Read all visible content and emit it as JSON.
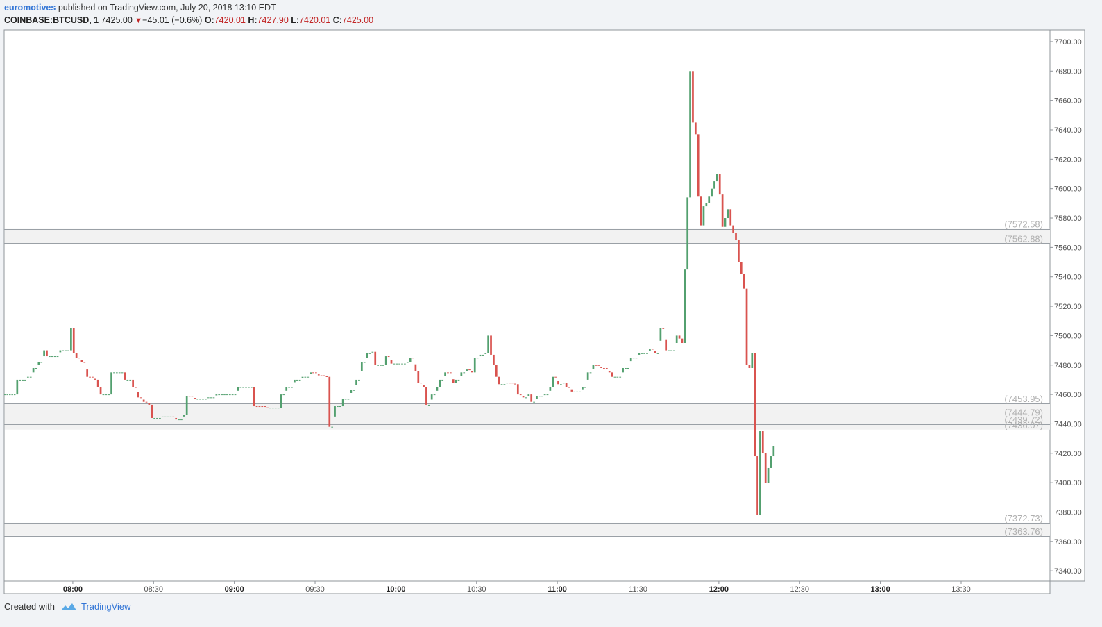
{
  "header": {
    "author": "euromotives",
    "published_text": "published on TradingView.com, July 20, 2018 13:10 EDT",
    "symbol": "COINBASE:BTCUSD, 1",
    "last_price": "7425.00",
    "change_arrow": "▼",
    "change": "−45.01 (−0.6%)",
    "open_label": "O:",
    "open": "7420.01",
    "high_label": "H:",
    "high": "7427.90",
    "low_label": "L:",
    "low": "7420.01",
    "close_label": "C:",
    "close": "7425.00"
  },
  "footer": {
    "created_with": "Created with",
    "brand": "TradingView"
  },
  "colors": {
    "up": "#53a06f",
    "down": "#d9534f",
    "grid_line": "#9aa0a6",
    "zone_fill": "#f2f2f2",
    "axis_text": "#555555",
    "level_text": "#b0b0b0",
    "author": "#3275d6",
    "price_change": "#c12424"
  },
  "chart_data": {
    "type": "candlestick",
    "x_ticks": [
      {
        "t": 480,
        "label": "08:00",
        "bold": true
      },
      {
        "t": 510,
        "label": "08:30",
        "bold": false
      },
      {
        "t": 540,
        "label": "09:00",
        "bold": true
      },
      {
        "t": 570,
        "label": "09:30",
        "bold": false
      },
      {
        "t": 600,
        "label": "10:00",
        "bold": true
      },
      {
        "t": 630,
        "label": "10:30",
        "bold": false
      },
      {
        "t": 660,
        "label": "11:00",
        "bold": true
      },
      {
        "t": 690,
        "label": "11:30",
        "bold": false
      },
      {
        "t": 720,
        "label": "12:00",
        "bold": true
      },
      {
        "t": 750,
        "label": "12:30",
        "bold": false
      },
      {
        "t": 780,
        "label": "13:00",
        "bold": true
      },
      {
        "t": 810,
        "label": "13:30",
        "bold": false
      }
    ],
    "x_range_minutes": [
      454.5,
      843
    ],
    "y_ticks": [
      7700,
      7680,
      7660,
      7640,
      7620,
      7600,
      7580,
      7560,
      7540,
      7520,
      7500,
      7480,
      7460,
      7440,
      7420,
      7400,
      7380,
      7360,
      7340
    ],
    "y_tick_labels": [
      "7700.00",
      "7680.00",
      "7660.00",
      "7640.00",
      "7620.00",
      "7600.00",
      "7580.00",
      "7560.00",
      "7540.00",
      "7520.00",
      "7500.00",
      "7480.00",
      "7460.00",
      "7440.00",
      "7420.00",
      "7400.00",
      "7380.00",
      "7360.00",
      "7340.00"
    ],
    "ylim": [
      7333,
      7708
    ],
    "levels": [
      {
        "value": 7572.58,
        "label": "(7572.58)"
      },
      {
        "value": 7562.88,
        "label": "(7562.88)"
      },
      {
        "value": 7453.95,
        "label": "(7453.95)"
      },
      {
        "value": 7444.79,
        "label": "(7444.79)"
      },
      {
        "value": 7439.72,
        "label": "(7439.72)"
      },
      {
        "value": 7436.07,
        "label": "(7436.07)"
      },
      {
        "value": 7372.73,
        "label": "(7372.73)"
      },
      {
        "value": 7363.76,
        "label": "(7363.76)"
      }
    ],
    "zones": [
      [
        7562.88,
        7572.58
      ],
      [
        7436.07,
        7453.95
      ],
      [
        7363.76,
        7372.73
      ]
    ],
    "series": [
      {
        "t": 454.5,
        "p": 7460
      },
      {
        "t": 459,
        "p": 7460
      },
      {
        "t": 460,
        "p": 7470
      },
      {
        "t": 464,
        "p": 7472
      },
      {
        "t": 466,
        "p": 7478
      },
      {
        "t": 468,
        "p": 7482
      },
      {
        "t": 470,
        "p": 7490
      },
      {
        "t": 471,
        "p": 7486
      },
      {
        "t": 473,
        "p": 7486
      },
      {
        "t": 476,
        "p": 7490
      },
      {
        "t": 479,
        "p": 7490
      },
      {
        "t": 480,
        "p": 7505
      },
      {
        "t": 481,
        "p": 7488
      },
      {
        "t": 482,
        "p": 7485
      },
      {
        "t": 484,
        "p": 7482
      },
      {
        "t": 486,
        "p": 7472
      },
      {
        "t": 489,
        "p": 7470
      },
      {
        "t": 490,
        "p": 7465
      },
      {
        "t": 491,
        "p": 7460
      },
      {
        "t": 494,
        "p": 7460
      },
      {
        "t": 495,
        "p": 7475
      },
      {
        "t": 499,
        "p": 7475
      },
      {
        "t": 500,
        "p": 7470
      },
      {
        "t": 502,
        "p": 7470
      },
      {
        "t": 503,
        "p": 7465
      },
      {
        "t": 505,
        "p": 7458
      },
      {
        "t": 507,
        "p": 7455
      },
      {
        "t": 509,
        "p": 7453
      },
      {
        "t": 510,
        "p": 7444
      },
      {
        "t": 514,
        "p": 7445
      },
      {
        "t": 517,
        "p": 7445
      },
      {
        "t": 519,
        "p": 7443
      },
      {
        "t": 522,
        "p": 7446
      },
      {
        "t": 523,
        "p": 7459
      },
      {
        "t": 526,
        "p": 7457
      },
      {
        "t": 531,
        "p": 7458
      },
      {
        "t": 534,
        "p": 7460
      },
      {
        "t": 540,
        "p": 7460
      },
      {
        "t": 542,
        "p": 7465
      },
      {
        "t": 547,
        "p": 7465
      },
      {
        "t": 548,
        "p": 7452
      },
      {
        "t": 553,
        "p": 7451
      },
      {
        "t": 557,
        "p": 7451
      },
      {
        "t": 558,
        "p": 7460
      },
      {
        "t": 560,
        "p": 7465
      },
      {
        "t": 563,
        "p": 7470
      },
      {
        "t": 566,
        "p": 7472
      },
      {
        "t": 569,
        "p": 7475
      },
      {
        "t": 572,
        "p": 7473
      },
      {
        "t": 575,
        "p": 7472
      },
      {
        "t": 576,
        "p": 7438
      },
      {
        "t": 578,
        "p": 7452
      },
      {
        "t": 579,
        "p": 7452
      },
      {
        "t": 580,
        "p": 7452
      },
      {
        "t": 581,
        "p": 7457
      },
      {
        "t": 584,
        "p": 7463
      },
      {
        "t": 586,
        "p": 7470
      },
      {
        "t": 588,
        "p": 7482
      },
      {
        "t": 590,
        "p": 7488
      },
      {
        "t": 592,
        "p": 7489
      },
      {
        "t": 593,
        "p": 7480
      },
      {
        "t": 596,
        "p": 7480
      },
      {
        "t": 597,
        "p": 7486
      },
      {
        "t": 599,
        "p": 7481
      },
      {
        "t": 605,
        "p": 7482
      },
      {
        "t": 606,
        "p": 7485
      },
      {
        "t": 608,
        "p": 7476
      },
      {
        "t": 609,
        "p": 7468
      },
      {
        "t": 611,
        "p": 7465
      },
      {
        "t": 612,
        "p": 7453
      },
      {
        "t": 614,
        "p": 7460
      },
      {
        "t": 616,
        "p": 7465
      },
      {
        "t": 617,
        "p": 7470
      },
      {
        "t": 619,
        "p": 7475
      },
      {
        "t": 622,
        "p": 7468
      },
      {
        "t": 623,
        "p": 7470
      },
      {
        "t": 625,
        "p": 7475
      },
      {
        "t": 627,
        "p": 7477
      },
      {
        "t": 629,
        "p": 7475
      },
      {
        "t": 630,
        "p": 7485
      },
      {
        "t": 632,
        "p": 7487
      },
      {
        "t": 634,
        "p": 7488
      },
      {
        "t": 635,
        "p": 7500
      },
      {
        "t": 636,
        "p": 7487
      },
      {
        "t": 637,
        "p": 7480
      },
      {
        "t": 638,
        "p": 7472
      },
      {
        "t": 639,
        "p": 7467
      },
      {
        "t": 642,
        "p": 7468
      },
      {
        "t": 645,
        "p": 7467
      },
      {
        "t": 646,
        "p": 7460
      },
      {
        "t": 648,
        "p": 7458
      },
      {
        "t": 650,
        "p": 7460
      },
      {
        "t": 651,
        "p": 7455
      },
      {
        "t": 653,
        "p": 7459
      },
      {
        "t": 656,
        "p": 7460
      },
      {
        "t": 658,
        "p": 7465
      },
      {
        "t": 659,
        "p": 7472
      },
      {
        "t": 661,
        "p": 7467
      },
      {
        "t": 663,
        "p": 7468
      },
      {
        "t": 664,
        "p": 7465
      },
      {
        "t": 666,
        "p": 7462
      },
      {
        "t": 668,
        "p": 7462
      },
      {
        "t": 670,
        "p": 7465
      },
      {
        "t": 672,
        "p": 7475
      },
      {
        "t": 674,
        "p": 7480
      },
      {
        "t": 677,
        "p": 7478
      },
      {
        "t": 680,
        "p": 7475
      },
      {
        "t": 681,
        "p": 7472
      },
      {
        "t": 683,
        "p": 7472
      },
      {
        "t": 685,
        "p": 7478
      },
      {
        "t": 688,
        "p": 7485
      },
      {
        "t": 691,
        "p": 7488
      },
      {
        "t": 693,
        "p": 7488
      },
      {
        "t": 695,
        "p": 7491
      },
      {
        "t": 697,
        "p": 7488
      },
      {
        "t": 699,
        "p": 7505
      },
      {
        "t": 701,
        "p": 7490
      },
      {
        "t": 703,
        "p": 7490
      },
      {
        "t": 705,
        "p": 7500
      },
      {
        "t": 706,
        "p": 7498
      },
      {
        "t": 707,
        "p": 7495
      },
      {
        "t": 708,
        "p": 7545
      },
      {
        "t": 709,
        "p": 7594
      },
      {
        "t": 710,
        "p": 7680
      },
      {
        "t": 711,
        "p": 7645
      },
      {
        "t": 712,
        "p": 7637
      },
      {
        "t": 713,
        "p": 7595
      },
      {
        "t": 714,
        "p": 7575
      },
      {
        "t": 715,
        "p": 7588
      },
      {
        "t": 716,
        "p": 7590
      },
      {
        "t": 717,
        "p": 7595
      },
      {
        "t": 718,
        "p": 7600
      },
      {
        "t": 719,
        "p": 7605
      },
      {
        "t": 720,
        "p": 7610
      },
      {
        "t": 721,
        "p": 7596
      },
      {
        "t": 722,
        "p": 7574
      },
      {
        "t": 723,
        "p": 7580
      },
      {
        "t": 724,
        "p": 7586
      },
      {
        "t": 725,
        "p": 7575
      },
      {
        "t": 726,
        "p": 7570
      },
      {
        "t": 727,
        "p": 7565
      },
      {
        "t": 728,
        "p": 7550
      },
      {
        "t": 729,
        "p": 7542
      },
      {
        "t": 730,
        "p": 7532
      },
      {
        "t": 731,
        "p": 7480
      },
      {
        "t": 732,
        "p": 7478
      },
      {
        "t": 733,
        "p": 7488
      },
      {
        "t": 734,
        "p": 7418
      },
      {
        "t": 735,
        "p": 7378
      },
      {
        "t": 736,
        "p": 7435
      },
      {
        "t": 737,
        "p": 7420
      },
      {
        "t": 738,
        "p": 7400
      },
      {
        "t": 739,
        "p": 7410
      },
      {
        "t": 740,
        "p": 7418
      },
      {
        "t": 741,
        "p": 7425
      }
    ]
  }
}
